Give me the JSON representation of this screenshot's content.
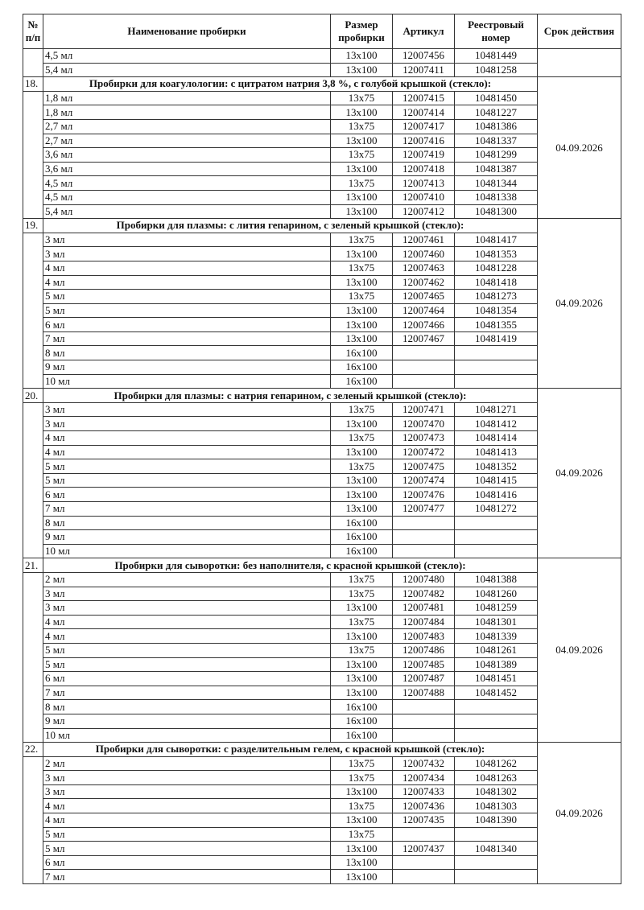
{
  "headers": {
    "num": "№ п/п",
    "name": "Наименование пробирки",
    "size": "Размер пробирки",
    "article": "Артикул",
    "registry": "Реестровый номер",
    "expiry": "Срок действия"
  },
  "sections": [
    {
      "number": "",
      "title": "",
      "expiry": "",
      "items": [
        {
          "volume": "4,5 мл",
          "size": "13x100",
          "article": "12007456",
          "registry": "10481449"
        },
        {
          "volume": "5,4 мл",
          "size": "13x100",
          "article": "12007411",
          "registry": "10481258"
        }
      ]
    },
    {
      "number": "18.",
      "title": "Пробирки для коагулологии: с цитратом натрия 3,8 %, с голубой крышкой (стекло):",
      "expiry": "04.09.2026",
      "items": [
        {
          "volume": "1,8 мл",
          "size": "13x75",
          "article": "12007415",
          "registry": "10481450"
        },
        {
          "volume": "1,8 мл",
          "size": "13x100",
          "article": "12007414",
          "registry": "10481227"
        },
        {
          "volume": "2,7 мл",
          "size": "13x75",
          "article": "12007417",
          "registry": "10481386"
        },
        {
          "volume": "2,7 мл",
          "size": "13x100",
          "article": "12007416",
          "registry": "10481337"
        },
        {
          "volume": "3,6 мл",
          "size": "13x75",
          "article": "12007419",
          "registry": "10481299"
        },
        {
          "volume": "3,6 мл",
          "size": "13x100",
          "article": "12007418",
          "registry": "10481387"
        },
        {
          "volume": "4,5 мл",
          "size": "13x75",
          "article": "12007413",
          "registry": "10481344"
        },
        {
          "volume": "4,5 мл",
          "size": "13x100",
          "article": "12007410",
          "registry": "10481338"
        },
        {
          "volume": "5,4 мл",
          "size": "13x100",
          "article": "12007412",
          "registry": "10481300"
        }
      ]
    },
    {
      "number": "19.",
      "title": "Пробирки для плазмы: с лития гепарином, с зеленый крышкой (стекло):",
      "expiry": "04.09.2026",
      "items": [
        {
          "volume": "3 мл",
          "size": "13x75",
          "article": "12007461",
          "registry": "10481417"
        },
        {
          "volume": "3 мл",
          "size": "13x100",
          "article": "12007460",
          "registry": "10481353"
        },
        {
          "volume": "4 мл",
          "size": "13x75",
          "article": "12007463",
          "registry": "10481228"
        },
        {
          "volume": "4 мл",
          "size": "13x100",
          "article": "12007462",
          "registry": "10481418"
        },
        {
          "volume": "5 мл",
          "size": "13x75",
          "article": "12007465",
          "registry": "10481273"
        },
        {
          "volume": "5 мл",
          "size": "13x100",
          "article": "12007464",
          "registry": "10481354"
        },
        {
          "volume": "6 мл",
          "size": "13x100",
          "article": "12007466",
          "registry": "10481355"
        },
        {
          "volume": "7 мл",
          "size": "13x100",
          "article": "12007467",
          "registry": "10481419"
        },
        {
          "volume": "8 мл",
          "size": "16x100",
          "article": "",
          "registry": ""
        },
        {
          "volume": "9 мл",
          "size": "16x100",
          "article": "",
          "registry": ""
        },
        {
          "volume": "10 мл",
          "size": "16x100",
          "article": "",
          "registry": ""
        }
      ]
    },
    {
      "number": "20.",
      "title": "Пробирки для плазмы: с натрия гепарином, с зеленый крышкой (стекло):",
      "expiry": "04.09.2026",
      "items": [
        {
          "volume": "3 мл",
          "size": "13x75",
          "article": "12007471",
          "registry": "10481271"
        },
        {
          "volume": "3 мл",
          "size": "13x100",
          "article": "12007470",
          "registry": "10481412"
        },
        {
          "volume": "4 мл",
          "size": "13x75",
          "article": "12007473",
          "registry": "10481414"
        },
        {
          "volume": "4 мл",
          "size": "13x100",
          "article": "12007472",
          "registry": "10481413"
        },
        {
          "volume": "5 мл",
          "size": "13x75",
          "article": "12007475",
          "registry": "10481352"
        },
        {
          "volume": "5 мл",
          "size": "13x100",
          "article": "12007474",
          "registry": "10481415"
        },
        {
          "volume": "6 мл",
          "size": "13x100",
          "article": "12007476",
          "registry": "10481416"
        },
        {
          "volume": "7 мл",
          "size": "13x100",
          "article": "12007477",
          "registry": "10481272"
        },
        {
          "volume": "8 мл",
          "size": "16x100",
          "article": "",
          "registry": ""
        },
        {
          "volume": "9 мл",
          "size": "16x100",
          "article": "",
          "registry": ""
        },
        {
          "volume": "10 мл",
          "size": "16x100",
          "article": "",
          "registry": ""
        }
      ]
    },
    {
      "number": "21.",
      "title": "Пробирки для сыворотки: без наполнителя, с красной крышкой (стекло):",
      "expiry": "04.09.2026",
      "items": [
        {
          "volume": "2 мл",
          "size": "13x75",
          "article": "12007480",
          "registry": "10481388"
        },
        {
          "volume": "3 мл",
          "size": "13x75",
          "article": "12007482",
          "registry": "10481260"
        },
        {
          "volume": "3 мл",
          "size": "13x100",
          "article": "12007481",
          "registry": "10481259"
        },
        {
          "volume": "4 мл",
          "size": "13x75",
          "article": "12007484",
          "registry": "10481301"
        },
        {
          "volume": "4 мл",
          "size": "13x100",
          "article": "12007483",
          "registry": "10481339"
        },
        {
          "volume": "5 мл",
          "size": "13x75",
          "article": "12007486",
          "registry": "10481261"
        },
        {
          "volume": "5 мл",
          "size": "13x100",
          "article": "12007485",
          "registry": "10481389"
        },
        {
          "volume": "6 мл",
          "size": "13x100",
          "article": "12007487",
          "registry": "10481451"
        },
        {
          "volume": "7 мл",
          "size": "13x100",
          "article": "12007488",
          "registry": "10481452"
        },
        {
          "volume": "8 мл",
          "size": "16x100",
          "article": "",
          "registry": ""
        },
        {
          "volume": "9 мл",
          "size": "16x100",
          "article": "",
          "registry": ""
        },
        {
          "volume": "10 мл",
          "size": "16x100",
          "article": "",
          "registry": ""
        }
      ]
    },
    {
      "number": "22.",
      "title": "Пробирки для сыворотки: с разделительным гелем, с красной крышкой (стекло):",
      "expiry": "04.09.2026",
      "items": [
        {
          "volume": "2 мл",
          "size": "13x75",
          "article": "12007432",
          "registry": "10481262"
        },
        {
          "volume": "3 мл",
          "size": "13x75",
          "article": "12007434",
          "registry": "10481263"
        },
        {
          "volume": "3 мл",
          "size": "13x100",
          "article": "12007433",
          "registry": "10481302"
        },
        {
          "volume": "4 мл",
          "size": "13x75",
          "article": "12007436",
          "registry": "10481303"
        },
        {
          "volume": "4 мл",
          "size": "13x100",
          "article": "12007435",
          "registry": "10481390"
        },
        {
          "volume": "5 мл",
          "size": "13x75",
          "article": "",
          "registry": ""
        },
        {
          "volume": "5 мл",
          "size": "13x100",
          "article": "12007437",
          "registry": "10481340"
        },
        {
          "volume": "6 мл",
          "size": "13x100",
          "article": "",
          "registry": ""
        },
        {
          "volume": "7 мл",
          "size": "13x100",
          "article": "",
          "registry": ""
        }
      ]
    }
  ]
}
